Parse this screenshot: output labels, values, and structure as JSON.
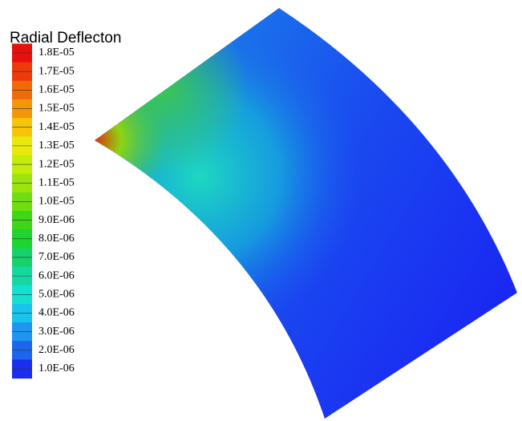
{
  "chart_data": {
    "type": "contour",
    "title": "Radial Deflecton",
    "clim": [
      1e-06,
      1.8e-05
    ],
    "ticks": [
      {
        "value": 1.8e-05,
        "label": "1.8E-05",
        "color": "#e8100c"
      },
      {
        "value": 1.7e-05,
        "label": "1.7E-05",
        "color": "#ee3a0a"
      },
      {
        "value": 1.6e-05,
        "label": "1.6E-05",
        "color": "#f06a0a"
      },
      {
        "value": 1.5e-05,
        "label": "1.5E-05",
        "color": "#f4960a"
      },
      {
        "value": 1.4e-05,
        "label": "1.4E-05",
        "color": "#f8c40a"
      },
      {
        "value": 1.3e-05,
        "label": "1.3E-05",
        "color": "#e8e80a"
      },
      {
        "value": 1.2e-05,
        "label": "1.2E-05",
        "color": "#c4ec0a"
      },
      {
        "value": 1.1e-05,
        "label": "1.1E-05",
        "color": "#9ee40c"
      },
      {
        "value": 1e-05,
        "label": "1.0E-05",
        "color": "#6ede10"
      },
      {
        "value": 9e-06,
        "label": "9.0E-06",
        "color": "#3ed616"
      },
      {
        "value": 8e-06,
        "label": "8.0E-06",
        "color": "#1ed42e"
      },
      {
        "value": 7e-06,
        "label": "7.0E-06",
        "color": "#16d26a"
      },
      {
        "value": 6e-06,
        "label": "6.0E-06",
        "color": "#14d8a0"
      },
      {
        "value": 5e-06,
        "label": "5.0E-06",
        "color": "#14e0d0"
      },
      {
        "value": 4e-06,
        "label": "4.0E-06",
        "color": "#18c4ec"
      },
      {
        "value": 3e-06,
        "label": "3.0E-06",
        "color": "#1c96ee"
      },
      {
        "value": 2e-06,
        "label": "2.0E-06",
        "color": "#1c66ee"
      },
      {
        "value": 1e-06,
        "label": "1.0E-06",
        "color": "#1a2ef0"
      }
    ]
  }
}
